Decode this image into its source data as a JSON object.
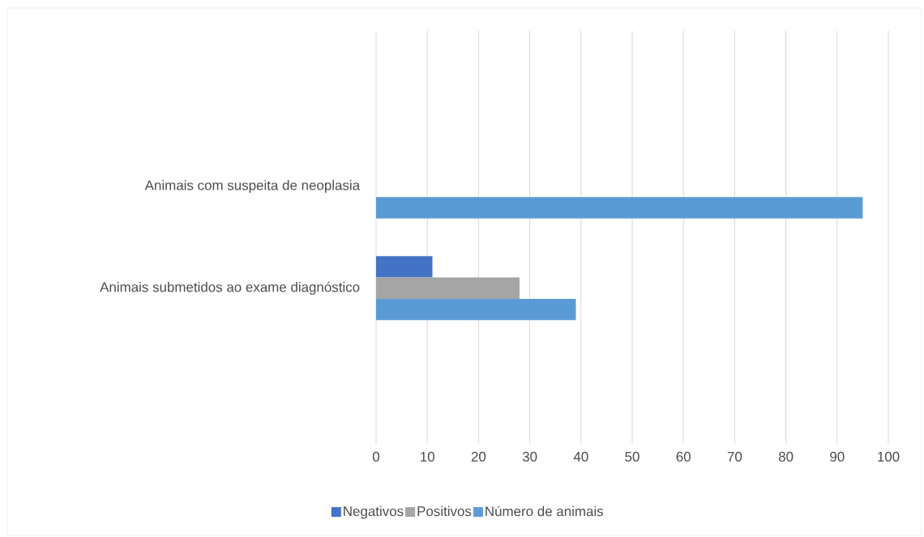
{
  "chart_data": {
    "type": "bar",
    "orientation": "horizontal",
    "categories": [
      "Animais com suspeita de neoplasia",
      "Animais submetidos ao exame diagnóstico"
    ],
    "series": [
      {
        "name": "Negativos",
        "color": "#4472c4",
        "values": [
          null,
          11
        ]
      },
      {
        "name": "Positivos",
        "color": "#a5a5a5",
        "values": [
          null,
          28
        ]
      },
      {
        "name": "Número de animais",
        "color": "#5b9bd5",
        "values": [
          95,
          39
        ]
      }
    ],
    "xlim": [
      0,
      100
    ],
    "xticks": [
      0,
      10,
      20,
      30,
      40,
      50,
      60,
      70,
      80,
      90,
      100
    ],
    "grid": "x",
    "legend": "bottom"
  }
}
